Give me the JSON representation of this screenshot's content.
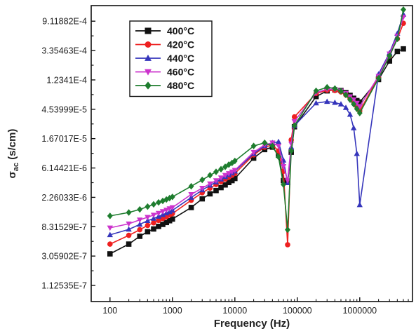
{
  "chart_data": {
    "type": "line",
    "xscale": "log",
    "yscale": "log",
    "xlabel": "Frequency (Hz)",
    "ylabel": "σ",
    "ylabel_sub": "ac",
    "ylabel_unit": " (s/cm)",
    "xlim": [
      50,
      7000000
    ],
    "ylim": [
      6.5e-08,
      0.00155
    ],
    "x_ticks": [
      {
        "value": 100,
        "label": "100"
      },
      {
        "value": 1000,
        "label": "1000"
      },
      {
        "value": 10000,
        "label": "10000"
      },
      {
        "value": 100000,
        "label": "100000"
      },
      {
        "value": 1000000,
        "label": "1000000"
      }
    ],
    "y_ticks": [
      {
        "value": 1.12535e-07,
        "label": "1.12535E-7"
      },
      {
        "value": 3.05902e-07,
        "label": "3.05902E-7"
      },
      {
        "value": 8.31529e-07,
        "label": "8.31529E-7"
      },
      {
        "value": 2.26033e-06,
        "label": "2.26033E-6"
      },
      {
        "value": 6.14421e-06,
        "label": "6.14421E-6"
      },
      {
        "value": 1.67017e-05,
        "label": "1.67017E-5"
      },
      {
        "value": 4.53999e-05,
        "label": "4.53999E-5"
      },
      {
        "value": 0.00012341,
        "label": "1.2341E-4"
      },
      {
        "value": 0.000335463,
        "label": "3.35463E-4"
      },
      {
        "value": 0.000911882,
        "label": "9.11882E-4"
      }
    ],
    "legend_position": "top-left",
    "series": [
      {
        "name": "400°C",
        "color": "#111111",
        "marker": "square",
        "x": [
          100,
          200,
          300,
          400,
          500,
          600,
          700,
          800,
          900,
          1000,
          2000,
          3000,
          4000,
          5000,
          6000,
          7000,
          8000,
          9000,
          10000,
          20000,
          30000,
          40000,
          50000,
          60000,
          70000,
          80000,
          90000,
          200000,
          300000,
          400000,
          500000,
          600000,
          700000,
          800000,
          900000,
          1000000,
          2000000,
          3000000,
          4000000,
          5000000
        ],
        "y": [
          3.3e-07,
          4.6e-07,
          6e-07,
          7e-07,
          7.7e-07,
          8.4e-07,
          9e-07,
          9.6e-07,
          1.02e-06,
          1.08e-06,
          1.6e-06,
          2.15e-06,
          2.55e-06,
          2.85e-06,
          3.15e-06,
          3.45e-06,
          3.75e-06,
          4e-06,
          4.3e-06,
          8.6e-06,
          1.15e-05,
          1.25e-05,
          9.5e-06,
          4e-06,
          3.8e-06,
          1.05e-05,
          2.5e-05,
          7e-05,
          8.5e-05,
          8.8e-05,
          8.6e-05,
          8e-05,
          7.3e-05,
          6.6e-05,
          6.1e-05,
          5.8e-05,
          0.000125,
          0.000235,
          0.000325,
          0.000355
        ]
      },
      {
        "name": "420°C",
        "color": "#ee2020",
        "marker": "circle",
        "x": [
          100,
          200,
          300,
          400,
          500,
          600,
          700,
          800,
          900,
          1000,
          2000,
          3000,
          4000,
          5000,
          6000,
          7000,
          8000,
          9000,
          10000,
          20000,
          30000,
          40000,
          50000,
          60000,
          70000,
          80000,
          90000,
          200000,
          300000,
          400000,
          500000,
          600000,
          700000,
          800000,
          900000,
          1000000,
          2000000,
          3000000,
          4000000,
          5000000
        ],
        "y": [
          4.6e-07,
          6.2e-07,
          7.5e-07,
          8.7e-07,
          9.5e-07,
          1.03e-06,
          1.1e-06,
          1.17e-06,
          1.24e-06,
          1.3e-06,
          2.05e-06,
          2.65e-06,
          3.1e-06,
          3.5e-06,
          3.85e-06,
          4.2e-06,
          4.5e-06,
          4.8e-06,
          5.1e-06,
          9.6e-06,
          1.25e-05,
          1.35e-05,
          1.1e-05,
          5.5e-06,
          4.5e-07,
          1.6e-05,
          3.5e-05,
          7.8e-05,
          8.7e-05,
          8.6e-05,
          8.2e-05,
          7.4e-05,
          6.6e-05,
          5.8e-05,
          5e-05,
          4.3e-05,
          0.000135,
          0.00028,
          0.0005,
          0.00085
        ]
      },
      {
        "name": "440°C",
        "color": "#3535bb",
        "marker": "triangle",
        "x": [
          100,
          200,
          300,
          400,
          500,
          600,
          700,
          800,
          900,
          1000,
          2000,
          3000,
          4000,
          5000,
          6000,
          7000,
          8000,
          9000,
          10000,
          20000,
          30000,
          40000,
          50000,
          60000,
          70000,
          80000,
          90000,
          200000,
          300000,
          400000,
          500000,
          600000,
          700000,
          800000,
          900000,
          1000000,
          2000000,
          3000000,
          4000000,
          5000000
        ],
        "y": [
          6.3e-07,
          7.6e-07,
          9e-07,
          1.02e-06,
          1.1e-06,
          1.18e-06,
          1.25e-06,
          1.32e-06,
          1.38e-06,
          1.45e-06,
          2.25e-06,
          2.9e-06,
          3.4e-06,
          3.8e-06,
          4.2e-06,
          4.55e-06,
          4.85e-06,
          5.15e-06,
          5.5e-06,
          1e-05,
          1.3e-05,
          1.45e-05,
          1.5e-05,
          8e-06,
          3.7e-06,
          1.25e-05,
          2.6e-05,
          5.6e-05,
          5.9e-05,
          5.7e-05,
          5.4e-05,
          4.8e-05,
          3.8e-05,
          2.4e-05,
          1e-05,
          1.75e-06,
          0.00015,
          0.00031,
          0.0006,
          0.00115
        ]
      },
      {
        "name": "460°C",
        "color": "#cc33cc",
        "marker": "triangle-down",
        "x": [
          100,
          200,
          300,
          400,
          500,
          600,
          700,
          800,
          900,
          1000,
          2000,
          3000,
          4000,
          5000,
          6000,
          7000,
          8000,
          9000,
          10000,
          20000,
          30000,
          40000,
          50000,
          60000,
          70000,
          80000,
          90000,
          200000,
          300000,
          400000,
          500000,
          600000,
          700000,
          800000,
          900000,
          1000000,
          2000000,
          3000000,
          4000000,
          5000000
        ],
        "y": [
          8e-07,
          9.2e-07,
          1.05e-06,
          1.15e-06,
          1.24e-06,
          1.32e-06,
          1.4e-06,
          1.47e-06,
          1.54e-06,
          1.6e-06,
          2.5e-06,
          3.1e-06,
          3.6e-06,
          4e-06,
          4.4e-06,
          4.8e-06,
          5.1e-06,
          5.4e-06,
          5.7e-06,
          1.05e-05,
          1.35e-05,
          1.45e-05,
          1.3e-05,
          6.5e-06,
          4e-06,
          1.4e-05,
          3e-05,
          8e-05,
          9e-05,
          8.9e-05,
          8.5e-05,
          7.8e-05,
          7e-05,
          6.3e-05,
          5.6e-05,
          5e-05,
          0.00014,
          0.0003,
          0.00055,
          0.00105
        ]
      },
      {
        "name": "480°C",
        "color": "#1e7d2e",
        "marker": "diamond",
        "x": [
          100,
          200,
          300,
          400,
          500,
          600,
          700,
          800,
          900,
          1000,
          2000,
          3000,
          4000,
          5000,
          6000,
          7000,
          8000,
          9000,
          10000,
          20000,
          30000,
          40000,
          50000,
          60000,
          70000,
          80000,
          90000,
          200000,
          300000,
          400000,
          500000,
          600000,
          700000,
          800000,
          900000,
          1000000,
          2000000,
          3000000,
          4000000,
          5000000
        ],
        "y": [
          1.2e-06,
          1.35e-06,
          1.5e-06,
          1.65e-06,
          1.78e-06,
          1.9e-06,
          2e-06,
          2.1e-06,
          2.2e-06,
          2.3e-06,
          3.3e-06,
          4.1e-06,
          4.8e-06,
          5.4e-06,
          5.9e-06,
          6.4e-06,
          6.9e-06,
          7.3e-06,
          7.8e-06,
          1.3e-05,
          1.45e-05,
          1.3e-05,
          9e-06,
          3.5e-06,
          7.5e-07,
          1.1e-05,
          2.6e-05,
          8.5e-05,
          9.6e-05,
          9.2e-05,
          8.4e-05,
          7.4e-05,
          6.3e-05,
          5.4e-05,
          4.6e-05,
          4e-05,
          0.00013,
          0.00028,
          0.0005,
          0.00135
        ]
      }
    ]
  }
}
